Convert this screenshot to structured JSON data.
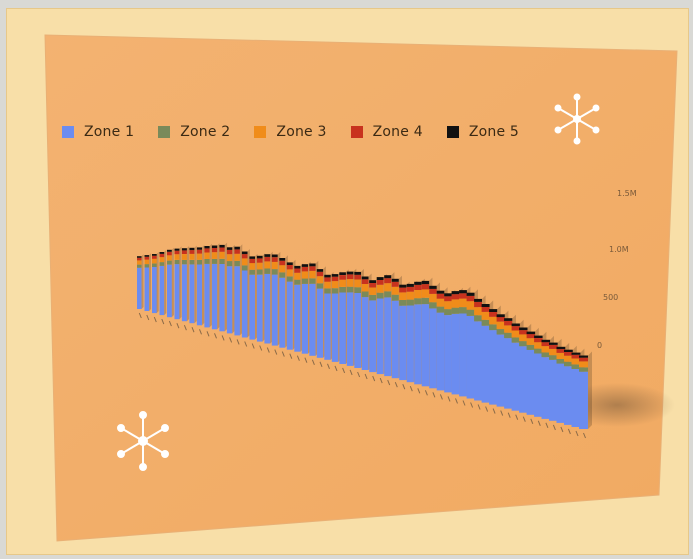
{
  "chart_data": {
    "type": "bar",
    "stacked": true,
    "view": "3d-perspective",
    "legend_position": "top",
    "grid": false,
    "series": [
      {
        "name": "Zone 1",
        "color": "#6b8cf0"
      },
      {
        "name": "Zone 2",
        "color": "#7a8a5a"
      },
      {
        "name": "Zone 3",
        "color": "#f08c1a"
      },
      {
        "name": "Zone 4",
        "color": "#c8321e"
      },
      {
        "name": "Zone 5",
        "color": "#111111"
      }
    ],
    "ytick_labels": [
      "1.5M",
      "1.0M",
      "500",
      "0"
    ],
    "totals": [
      120,
      126,
      132,
      140,
      148,
      154,
      158,
      162,
      166,
      172,
      176,
      180,
      178,
      182,
      175,
      168,
      172,
      178,
      180,
      176,
      170,
      166,
      172,
      176,
      168,
      160,
      164,
      170,
      174,
      176,
      170,
      166,
      174,
      180,
      176,
      168,
      172,
      178,
      182,
      176,
      170,
      168,
      174,
      178,
      176,
      168,
      162,
      156,
      150,
      146,
      140,
      136,
      132,
      128,
      124,
      122,
      118,
      116,
      114,
      112
    ],
    "zone_shares": [
      0.78,
      0.06,
      0.08,
      0.05,
      0.03
    ]
  },
  "decorations": {
    "snowflake_icon_top": "snowflake-icon",
    "snowflake_icon_bottom": "snowflake-icon",
    "card_color": "#f4b06c",
    "background_color": "#f8dfa8"
  }
}
